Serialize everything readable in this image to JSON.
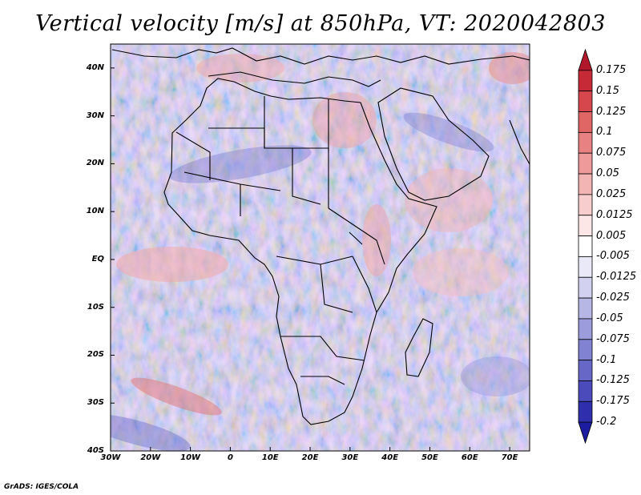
{
  "title": "Vertical velocity [m/s] at 850hPa, VT: 2020042803",
  "credit": "GrADS: IGES/COLA",
  "map": {
    "lat_labels": [
      "40N",
      "30N",
      "20N",
      "10N",
      "EQ",
      "10S",
      "20S",
      "30S",
      "40S"
    ],
    "lat_values": [
      40,
      30,
      20,
      10,
      0,
      -10,
      -20,
      -30,
      -40
    ],
    "lon_labels": [
      "30W",
      "20W",
      "10W",
      "0",
      "10E",
      "20E",
      "30E",
      "40E",
      "50E",
      "60E",
      "70E"
    ],
    "lon_values": [
      -30,
      -20,
      -10,
      0,
      10,
      20,
      30,
      40,
      50,
      60,
      70
    ],
    "lat_range": [
      -40,
      45
    ],
    "lon_range": [
      -30,
      75
    ],
    "field": "vertical velocity",
    "level": "850hPa",
    "units": "m/s"
  },
  "colorbar": {
    "labels": [
      "0.175",
      "0.15",
      "0.125",
      "0.1",
      "0.075",
      "0.05",
      "0.025",
      "0.0125",
      "0.005",
      "-0.005",
      "-0.0125",
      "-0.025",
      "-0.05",
      "-0.075",
      "-0.1",
      "-0.125",
      "-0.175",
      "-0.2"
    ],
    "colors": [
      "#b2182b",
      "#c62a36",
      "#d6464d",
      "#e06666",
      "#e88181",
      "#ee9a9a",
      "#f3b4b4",
      "#f8cdcd",
      "#fce6e6",
      "#ffffff",
      "#e9e9f8",
      "#d2d2f0",
      "#b7b7e6",
      "#9c9cdd",
      "#8282d3",
      "#6767c8",
      "#4b4bbb",
      "#2f2fae",
      "#1c1ca0"
    ]
  }
}
